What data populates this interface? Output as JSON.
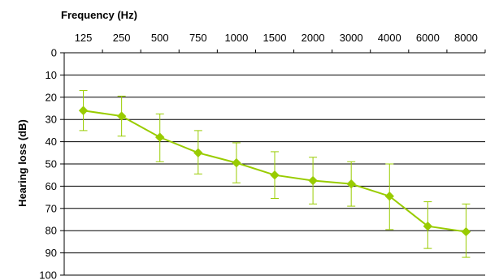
{
  "chart_data": {
    "type": "line",
    "xlabel": "Frequency (Hz)",
    "ylabel": "Hearing loss (dB)",
    "categories": [
      "125",
      "250",
      "500",
      "750",
      "1000",
      "1500",
      "2000",
      "3000",
      "4000",
      "6000",
      "8000"
    ],
    "y_ticks": [
      "0",
      "10",
      "20",
      "30",
      "40",
      "50",
      "60",
      "70",
      "80",
      "90",
      "100"
    ],
    "ylim": [
      0,
      100
    ],
    "y_inverted": true,
    "x_axis_position": "top",
    "grid": true,
    "series": [
      {
        "values": [
          26,
          28.5,
          38,
          45,
          49.5,
          55,
          57.5,
          59,
          64.5,
          78,
          80.5
        ],
        "error_low": [
          17,
          19.5,
          27.5,
          35,
          40.5,
          44.5,
          47,
          49,
          50,
          67,
          68
        ],
        "error_high": [
          35,
          37.5,
          49,
          54.5,
          58.5,
          65.5,
          68,
          69,
          79.5,
          88,
          92
        ],
        "color": "#99cc00",
        "marker": "diamond"
      }
    ]
  }
}
